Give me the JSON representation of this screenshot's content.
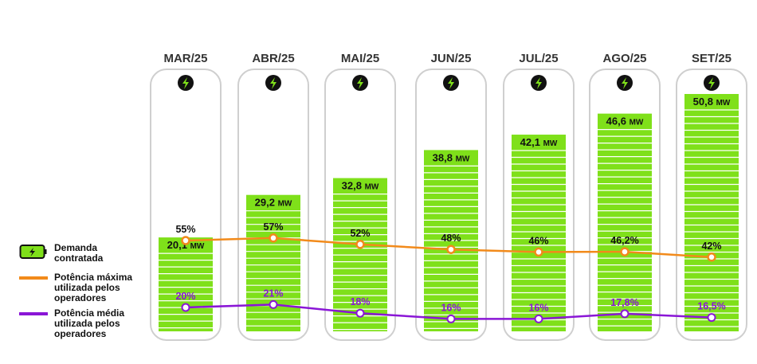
{
  "chart_data": {
    "type": "bar",
    "categories": [
      "MAR/25",
      "ABR/25",
      "MAI/25",
      "JUN/25",
      "JUL/25",
      "AGO/25",
      "SET/25"
    ],
    "series": [
      {
        "name": "Demanda contratada",
        "values": [
          20.1,
          29.2,
          32.8,
          38.8,
          42.1,
          46.6,
          50.8
        ],
        "labels": [
          "20,1",
          "29,2",
          "32,8",
          "38,8",
          "42,1",
          "46,6",
          "50,8"
        ],
        "unit": "MW"
      },
      {
        "name": "Potência máxima utilizada pelos operadores",
        "values": [
          55,
          57,
          52,
          48,
          46,
          46.2,
          42
        ],
        "labels": [
          "55%",
          "57%",
          "52%",
          "48%",
          "46%",
          "46,2%",
          "42%"
        ]
      },
      {
        "name": "Potência média utilizada pelos operadores",
        "values": [
          20,
          21,
          18,
          16,
          16,
          17.8,
          16.5
        ],
        "labels": [
          "20%",
          "21%",
          "18%",
          "16%",
          "16%",
          "17,8%",
          "16,5%"
        ]
      }
    ],
    "legend": [
      {
        "label": "Demanda\ncontratada",
        "icon": "battery-icon"
      },
      {
        "label": "Potência máxima\nutilizada pelos\noperadores",
        "color": "#f28a1a"
      },
      {
        "label": "Potência média\nutilizada pelos\noperadores",
        "color": "#8a16d6"
      }
    ],
    "colors": {
      "bar": "#7fe01a",
      "max_line": "#f28a1a",
      "avg_line": "#8a16d6",
      "avg_text": "#8a16d6",
      "column_outline": "#cfcfcf",
      "icon_bg": "#111111",
      "icon_fg": "#7fe01a"
    },
    "ymax_mw": 50.8,
    "legend_position": "left"
  }
}
